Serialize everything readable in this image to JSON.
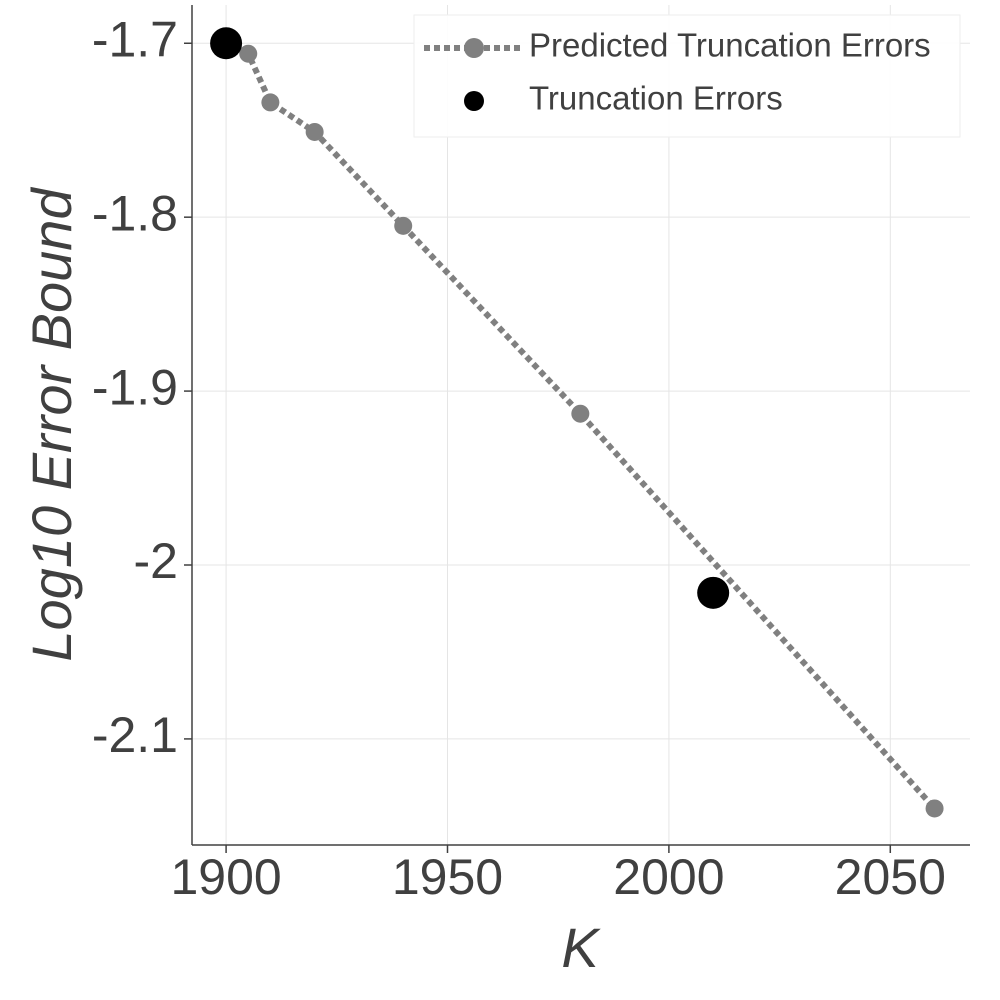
{
  "chart_data": {
    "type": "line",
    "x_label": "K",
    "y_label": "Log10 Error Bound",
    "xlim": [
      1892.3,
      2068
    ],
    "ylim": [
      -2.161,
      -1.678
    ],
    "xticks": [
      1900,
      1950,
      2000,
      2050
    ],
    "yticks": [
      -1.7,
      -1.8,
      -1.9,
      -2,
      -2.1
    ],
    "grid": true,
    "legend": "upper right",
    "series": [
      {
        "name": "Predicted Truncation Errors",
        "color": "#808080",
        "style": "dotted-line-markers",
        "x": [
          1900,
          1905,
          1910,
          1920,
          1940,
          1980,
          2060
        ],
        "values": [
          -1.7,
          -1.706,
          -1.734,
          -1.751,
          -1.805,
          -1.913,
          -2.14
        ]
      },
      {
        "name": "Truncation Errors",
        "color": "#000000",
        "style": "markers",
        "x": [
          1900,
          2010
        ],
        "values": [
          -1.7,
          -2.016
        ]
      }
    ]
  }
}
